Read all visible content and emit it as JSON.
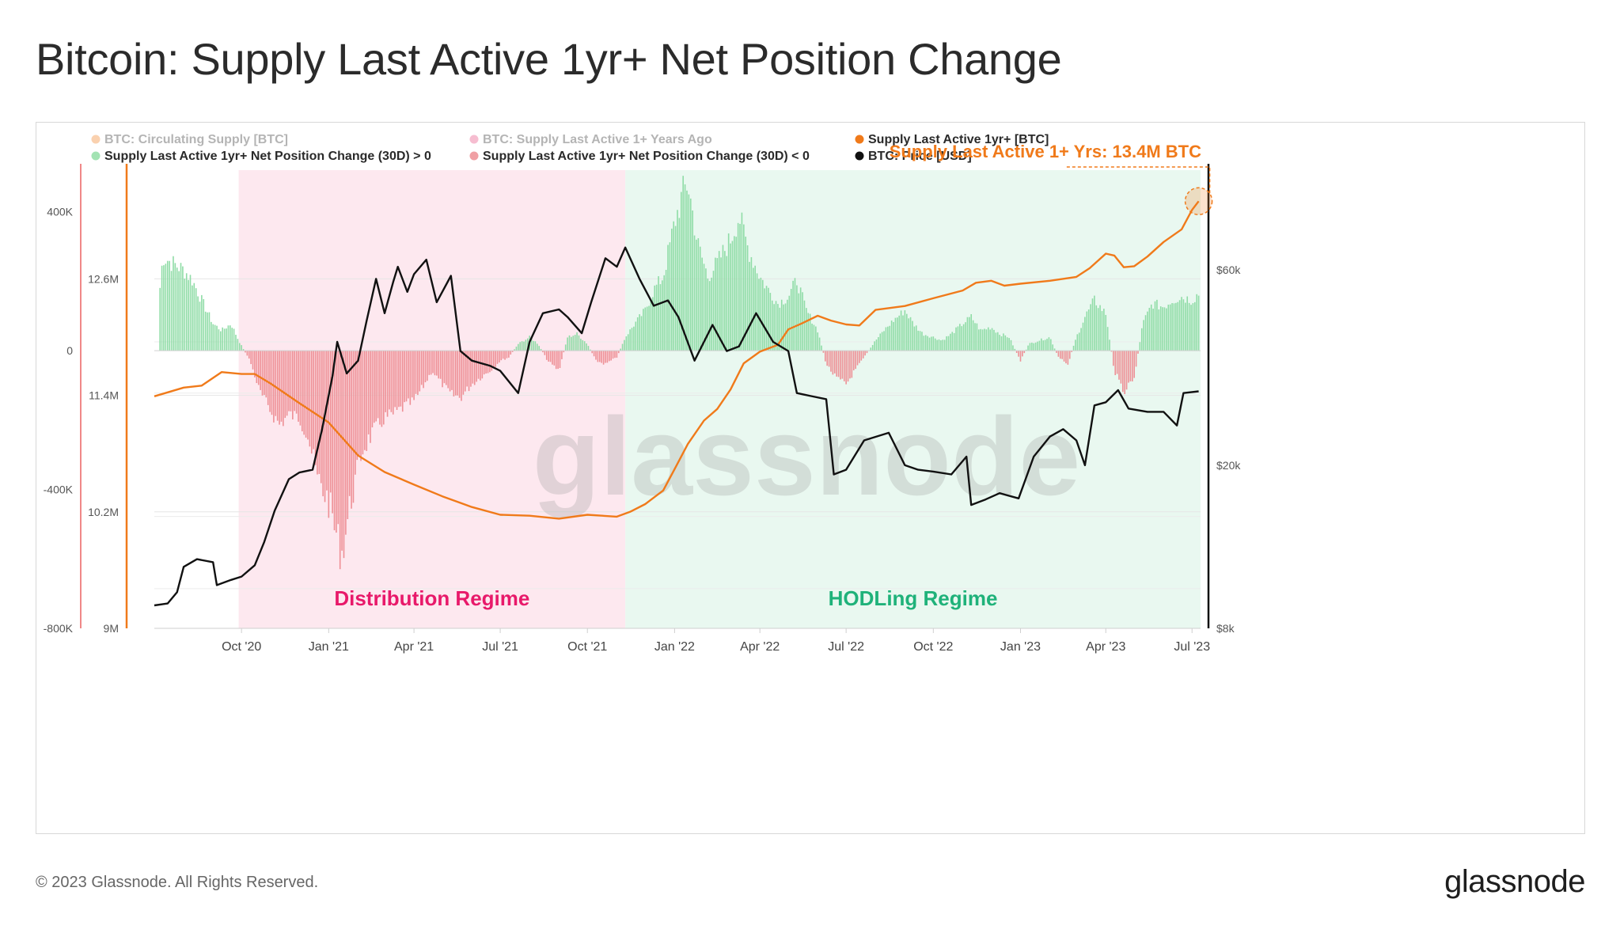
{
  "title": "Bitcoin: Supply Last Active 1yr+ Net Position Change",
  "footer": {
    "copyright": "© 2023 Glassnode. All Rights Reserved.",
    "brand": "glassnode"
  },
  "chart_data": {
    "type": "bar",
    "watermark": "glassnode",
    "legend": [
      {
        "label": "BTC: Circulating Supply [BTC]",
        "color": "#f07a1a",
        "faded": true
      },
      {
        "label": "BTC: Supply Last Active 1+ Years Ago",
        "color": "#e8457a",
        "faded": true
      },
      {
        "label": "Supply Last Active 1yr+ [BTC]",
        "color": "#f07a1a",
        "faded": false
      },
      {
        "label": "Supply Last Active 1yr+ Net Position Change (30D) > 0",
        "color": "#a3e3b3",
        "faded": false
      },
      {
        "label": "Supply Last Active 1yr+ Net Position Change (30D) < 0",
        "color": "#f0a0a4",
        "faded": false
      },
      {
        "label": "BTC: Price [USD]",
        "color": "#111111",
        "faded": false
      }
    ],
    "colors": {
      "positive_bar": "#8fdca6",
      "negative_bar": "#ee8f95",
      "supply_line": "#f07a1a",
      "price_line": "#111111",
      "distribution_bg": "#fde8ef",
      "hodling_bg": "#e9f8f0",
      "distribution_text": "#e8196a",
      "hodling_text": "#1fb27a",
      "annotation": "#f07a1a"
    },
    "annotation": "Supply Last Active 1+ Yrs: 13.4M BTC",
    "regimes": [
      {
        "label": "Distribution Regime",
        "start": "2020-09-28",
        "end": "2021-11-10"
      },
      {
        "label": "HODLing Regime",
        "start": "2021-11-10",
        "end": "2023-07-10"
      }
    ],
    "x_range": [
      "2020-07-01",
      "2023-07-10"
    ],
    "x_ticks": [
      {
        "date": "2020-10-01",
        "label": "Oct '20"
      },
      {
        "date": "2021-01-01",
        "label": "Jan '21"
      },
      {
        "date": "2021-04-01",
        "label": "Apr '21"
      },
      {
        "date": "2021-07-01",
        "label": "Jul '21"
      },
      {
        "date": "2021-10-01",
        "label": "Oct '21"
      },
      {
        "date": "2022-01-01",
        "label": "Jan '22"
      },
      {
        "date": "2022-04-01",
        "label": "Apr '22"
      },
      {
        "date": "2022-07-01",
        "label": "Jul '22"
      },
      {
        "date": "2022-10-01",
        "label": "Oct '22"
      },
      {
        "date": "2023-01-01",
        "label": "Jan '23"
      },
      {
        "date": "2023-04-01",
        "label": "Apr '23"
      },
      {
        "date": "2023-07-01",
        "label": "Jul '23"
      }
    ],
    "y_change": {
      "range": [
        -800000,
        520000
      ],
      "ticks": [
        {
          "v": 400000,
          "label": "400K"
        },
        {
          "v": 0,
          "label": "0"
        },
        {
          "v": -400000,
          "label": "-400K"
        },
        {
          "v": -800000,
          "label": "-800K"
        }
      ]
    },
    "y_supply": {
      "range": [
        9000000,
        13720000
      ],
      "ticks": [
        {
          "v": 12600000,
          "label": "12.6M"
        },
        {
          "v": 11400000,
          "label": "11.4M"
        },
        {
          "v": 10200000,
          "label": "10.2M"
        },
        {
          "v": 9000000,
          "label": "9M"
        }
      ]
    },
    "y_price": {
      "scale": "log",
      "range": [
        8000,
        105000
      ],
      "ticks": [
        {
          "v": 60000,
          "label": "$60k"
        },
        {
          "v": 20000,
          "label": "$20k"
        },
        {
          "v": 8000,
          "label": "$8k"
        }
      ]
    },
    "net_position_change_30d": [
      [
        "2020-07-01",
        0
      ],
      [
        "2020-07-10",
        280000
      ],
      [
        "2020-07-20",
        260000
      ],
      [
        "2020-08-01",
        240000
      ],
      [
        "2020-08-10",
        210000
      ],
      [
        "2020-08-20",
        150000
      ],
      [
        "2020-09-01",
        80000
      ],
      [
        "2020-09-10",
        60000
      ],
      [
        "2020-09-20",
        80000
      ],
      [
        "2020-09-28",
        30000
      ],
      [
        "2020-10-10",
        -30000
      ],
      [
        "2020-10-20",
        -120000
      ],
      [
        "2020-11-01",
        -180000
      ],
      [
        "2020-11-10",
        -220000
      ],
      [
        "2020-11-20",
        -190000
      ],
      [
        "2020-12-01",
        -200000
      ],
      [
        "2020-12-10",
        -250000
      ],
      [
        "2020-12-20",
        -380000
      ],
      [
        "2021-01-01",
        -450000
      ],
      [
        "2021-01-10",
        -560000
      ],
      [
        "2021-01-15",
        -600000
      ],
      [
        "2021-01-25",
        -440000
      ],
      [
        "2021-02-05",
        -300000
      ],
      [
        "2021-02-15",
        -250000
      ],
      [
        "2021-03-01",
        -200000
      ],
      [
        "2021-03-10",
        -190000
      ],
      [
        "2021-03-20",
        -170000
      ],
      [
        "2021-04-01",
        -150000
      ],
      [
        "2021-04-10",
        -110000
      ],
      [
        "2021-04-20",
        -60000
      ],
      [
        "2021-05-01",
        -100000
      ],
      [
        "2021-05-10",
        -130000
      ],
      [
        "2021-05-20",
        -140000
      ],
      [
        "2021-06-01",
        -100000
      ],
      [
        "2021-06-10",
        -80000
      ],
      [
        "2021-06-20",
        -60000
      ],
      [
        "2021-07-01",
        -30000
      ],
      [
        "2021-07-10",
        -20000
      ],
      [
        "2021-07-20",
        20000
      ],
      [
        "2021-08-01",
        40000
      ],
      [
        "2021-08-10",
        20000
      ],
      [
        "2021-08-20",
        -30000
      ],
      [
        "2021-09-01",
        -60000
      ],
      [
        "2021-09-10",
        40000
      ],
      [
        "2021-09-20",
        50000
      ],
      [
        "2021-10-01",
        20000
      ],
      [
        "2021-10-10",
        -30000
      ],
      [
        "2021-10-20",
        -40000
      ],
      [
        "2021-11-01",
        -20000
      ],
      [
        "2021-11-10",
        40000
      ],
      [
        "2021-11-20",
        80000
      ],
      [
        "2021-12-01",
        120000
      ],
      [
        "2021-12-10",
        180000
      ],
      [
        "2021-12-20",
        220000
      ],
      [
        "2022-01-01",
        380000
      ],
      [
        "2022-01-10",
        470000
      ],
      [
        "2022-01-15",
        500000
      ],
      [
        "2022-01-25",
        320000
      ],
      [
        "2022-02-05",
        220000
      ],
      [
        "2022-02-15",
        260000
      ],
      [
        "2022-03-01",
        330000
      ],
      [
        "2022-03-10",
        400000
      ],
      [
        "2022-03-20",
        300000
      ],
      [
        "2022-04-01",
        220000
      ],
      [
        "2022-04-10",
        180000
      ],
      [
        "2022-04-20",
        140000
      ],
      [
        "2022-05-01",
        160000
      ],
      [
        "2022-05-10",
        210000
      ],
      [
        "2022-05-20",
        120000
      ],
      [
        "2022-06-01",
        60000
      ],
      [
        "2022-06-10",
        -40000
      ],
      [
        "2022-06-20",
        -80000
      ],
      [
        "2022-07-01",
        -100000
      ],
      [
        "2022-07-10",
        -60000
      ],
      [
        "2022-07-20",
        -20000
      ],
      [
        "2022-08-01",
        30000
      ],
      [
        "2022-08-10",
        60000
      ],
      [
        "2022-08-20",
        90000
      ],
      [
        "2022-09-01",
        120000
      ],
      [
        "2022-09-10",
        80000
      ],
      [
        "2022-09-20",
        50000
      ],
      [
        "2022-10-01",
        40000
      ],
      [
        "2022-10-10",
        30000
      ],
      [
        "2022-10-20",
        50000
      ],
      [
        "2022-11-01",
        80000
      ],
      [
        "2022-11-10",
        100000
      ],
      [
        "2022-11-20",
        60000
      ],
      [
        "2022-12-01",
        70000
      ],
      [
        "2022-12-10",
        50000
      ],
      [
        "2022-12-20",
        40000
      ],
      [
        "2023-01-01",
        -30000
      ],
      [
        "2023-01-10",
        20000
      ],
      [
        "2023-01-20",
        30000
      ],
      [
        "2023-02-01",
        40000
      ],
      [
        "2023-02-10",
        -20000
      ],
      [
        "2023-02-20",
        -40000
      ],
      [
        "2023-03-01",
        40000
      ],
      [
        "2023-03-10",
        100000
      ],
      [
        "2023-03-20",
        150000
      ],
      [
        "2023-04-01",
        110000
      ],
      [
        "2023-04-10",
        -60000
      ],
      [
        "2023-04-20",
        -120000
      ],
      [
        "2023-05-01",
        -80000
      ],
      [
        "2023-05-10",
        80000
      ],
      [
        "2023-05-20",
        140000
      ],
      [
        "2023-06-01",
        130000
      ],
      [
        "2023-06-10",
        150000
      ],
      [
        "2023-06-20",
        160000
      ],
      [
        "2023-07-01",
        150000
      ],
      [
        "2023-07-08",
        170000
      ]
    ],
    "supply_last_active_1yr": [
      [
        "2020-07-01",
        11390000
      ],
      [
        "2020-08-01",
        11480000
      ],
      [
        "2020-08-20",
        11500000
      ],
      [
        "2020-09-10",
        11640000
      ],
      [
        "2020-10-01",
        11620000
      ],
      [
        "2020-10-15",
        11620000
      ],
      [
        "2020-11-01",
        11520000
      ],
      [
        "2020-12-01",
        11320000
      ],
      [
        "2021-01-01",
        11120000
      ],
      [
        "2021-02-01",
        10780000
      ],
      [
        "2021-03-01",
        10610000
      ],
      [
        "2021-04-01",
        10480000
      ],
      [
        "2021-05-01",
        10360000
      ],
      [
        "2021-06-01",
        10250000
      ],
      [
        "2021-07-01",
        10170000
      ],
      [
        "2021-08-01",
        10160000
      ],
      [
        "2021-09-01",
        10130000
      ],
      [
        "2021-10-01",
        10170000
      ],
      [
        "2021-11-01",
        10150000
      ],
      [
        "2021-11-15",
        10200000
      ],
      [
        "2021-12-01",
        10280000
      ],
      [
        "2021-12-20",
        10420000
      ],
      [
        "2022-01-01",
        10640000
      ],
      [
        "2022-01-15",
        10900000
      ],
      [
        "2022-02-01",
        11140000
      ],
      [
        "2022-02-15",
        11260000
      ],
      [
        "2022-03-01",
        11460000
      ],
      [
        "2022-03-15",
        11730000
      ],
      [
        "2022-04-01",
        11850000
      ],
      [
        "2022-04-20",
        11920000
      ],
      [
        "2022-05-01",
        12080000
      ],
      [
        "2022-05-15",
        12140000
      ],
      [
        "2022-06-01",
        12220000
      ],
      [
        "2022-06-15",
        12170000
      ],
      [
        "2022-07-01",
        12130000
      ],
      [
        "2022-07-15",
        12120000
      ],
      [
        "2022-08-01",
        12280000
      ],
      [
        "2022-09-01",
        12320000
      ],
      [
        "2022-10-01",
        12400000
      ],
      [
        "2022-11-01",
        12480000
      ],
      [
        "2022-11-15",
        12560000
      ],
      [
        "2022-12-01",
        12580000
      ],
      [
        "2022-12-15",
        12530000
      ],
      [
        "2023-01-01",
        12550000
      ],
      [
        "2023-02-01",
        12580000
      ],
      [
        "2023-03-01",
        12620000
      ],
      [
        "2023-03-15",
        12710000
      ],
      [
        "2023-04-01",
        12860000
      ],
      [
        "2023-04-10",
        12840000
      ],
      [
        "2023-04-20",
        12720000
      ],
      [
        "2023-05-01",
        12730000
      ],
      [
        "2023-05-15",
        12830000
      ],
      [
        "2023-06-01",
        12980000
      ],
      [
        "2023-06-20",
        13110000
      ],
      [
        "2023-07-01",
        13310000
      ],
      [
        "2023-07-08",
        13400000
      ]
    ],
    "btc_price_usd": [
      [
        "2020-07-01",
        9100
      ],
      [
        "2020-07-15",
        9200
      ],
      [
        "2020-07-25",
        9800
      ],
      [
        "2020-08-01",
        11300
      ],
      [
        "2020-08-15",
        11800
      ],
      [
        "2020-09-01",
        11600
      ],
      [
        "2020-09-05",
        10200
      ],
      [
        "2020-09-20",
        10500
      ],
      [
        "2020-10-01",
        10700
      ],
      [
        "2020-10-15",
        11400
      ],
      [
        "2020-10-25",
        13000
      ],
      [
        "2020-11-05",
        15500
      ],
      [
        "2020-11-20",
        18500
      ],
      [
        "2020-12-01",
        19200
      ],
      [
        "2020-12-15",
        19500
      ],
      [
        "2020-12-25",
        24500
      ],
      [
        "2021-01-05",
        33000
      ],
      [
        "2021-01-10",
        40000
      ],
      [
        "2021-01-20",
        33500
      ],
      [
        "2021-02-01",
        36000
      ],
      [
        "2021-02-10",
        45000
      ],
      [
        "2021-02-20",
        57000
      ],
      [
        "2021-03-01",
        47000
      ],
      [
        "2021-03-10",
        56000
      ],
      [
        "2021-03-15",
        61000
      ],
      [
        "2021-03-25",
        53000
      ],
      [
        "2021-04-01",
        58500
      ],
      [
        "2021-04-14",
        63500
      ],
      [
        "2021-04-25",
        50000
      ],
      [
        "2021-05-10",
        58000
      ],
      [
        "2021-05-20",
        38000
      ],
      [
        "2021-06-01",
        36000
      ],
      [
        "2021-06-20",
        35000
      ],
      [
        "2021-07-01",
        34000
      ],
      [
        "2021-07-20",
        30000
      ],
      [
        "2021-08-01",
        40000
      ],
      [
        "2021-08-15",
        47000
      ],
      [
        "2021-09-01",
        48000
      ],
      [
        "2021-09-10",
        46000
      ],
      [
        "2021-09-25",
        42000
      ],
      [
        "2021-10-05",
        50000
      ],
      [
        "2021-10-20",
        64000
      ],
      [
        "2021-11-01",
        61000
      ],
      [
        "2021-11-10",
        68000
      ],
      [
        "2021-11-25",
        57000
      ],
      [
        "2021-12-10",
        49000
      ],
      [
        "2021-12-25",
        50500
      ],
      [
        "2022-01-05",
        46000
      ],
      [
        "2022-01-22",
        36000
      ],
      [
        "2022-02-10",
        44000
      ],
      [
        "2022-02-25",
        38000
      ],
      [
        "2022-03-10",
        39000
      ],
      [
        "2022-03-28",
        47000
      ],
      [
        "2022-04-15",
        40000
      ],
      [
        "2022-05-01",
        38000
      ],
      [
        "2022-05-10",
        30000
      ],
      [
        "2022-05-25",
        29500
      ],
      [
        "2022-06-10",
        29000
      ],
      [
        "2022-06-18",
        19000
      ],
      [
        "2022-07-01",
        19500
      ],
      [
        "2022-07-20",
        23000
      ],
      [
        "2022-08-15",
        24000
      ],
      [
        "2022-09-01",
        20000
      ],
      [
        "2022-09-15",
        19500
      ],
      [
        "2022-10-01",
        19300
      ],
      [
        "2022-10-20",
        19000
      ],
      [
        "2022-11-05",
        21000
      ],
      [
        "2022-11-10",
        16000
      ],
      [
        "2022-11-25",
        16500
      ],
      [
        "2022-12-10",
        17100
      ],
      [
        "2022-12-30",
        16600
      ],
      [
        "2023-01-15",
        21000
      ],
      [
        "2023-02-01",
        23500
      ],
      [
        "2023-02-15",
        24500
      ],
      [
        "2023-03-01",
        23000
      ],
      [
        "2023-03-10",
        20000
      ],
      [
        "2023-03-20",
        28000
      ],
      [
        "2023-04-01",
        28500
      ],
      [
        "2023-04-14",
        30500
      ],
      [
        "2023-04-25",
        27500
      ],
      [
        "2023-05-15",
        27000
      ],
      [
        "2023-06-01",
        27000
      ],
      [
        "2023-06-15",
        25000
      ],
      [
        "2023-06-22",
        30000
      ],
      [
        "2023-07-08",
        30300
      ]
    ]
  }
}
